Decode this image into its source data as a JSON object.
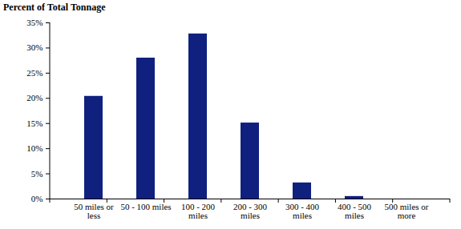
{
  "chart_data": {
    "type": "bar",
    "ylabel": "Percent of Total Tonnage",
    "categories": [
      "50 miles or less",
      "50 - 100 miles",
      "100 - 200 miles",
      "200 - 300 miles",
      "300 - 400 miles",
      "400 - 500 miles",
      "500 miles or more"
    ],
    "values": [
      20.4,
      28.0,
      32.8,
      15.1,
      3.2,
      0.5,
      0
    ],
    "color": "#10207f",
    "ylim": [
      0,
      35
    ],
    "yticks": [
      {
        "value": 0,
        "label": "0%"
      },
      {
        "value": 5,
        "label": "5%"
      },
      {
        "value": 10,
        "label": "10%"
      },
      {
        "value": 15,
        "label": "15%"
      },
      {
        "value": 20,
        "label": "20%"
      },
      {
        "value": 25,
        "label": "25%"
      },
      {
        "value": 30,
        "label": "30%"
      },
      {
        "value": 35,
        "label": "35%"
      }
    ],
    "grid": false
  }
}
